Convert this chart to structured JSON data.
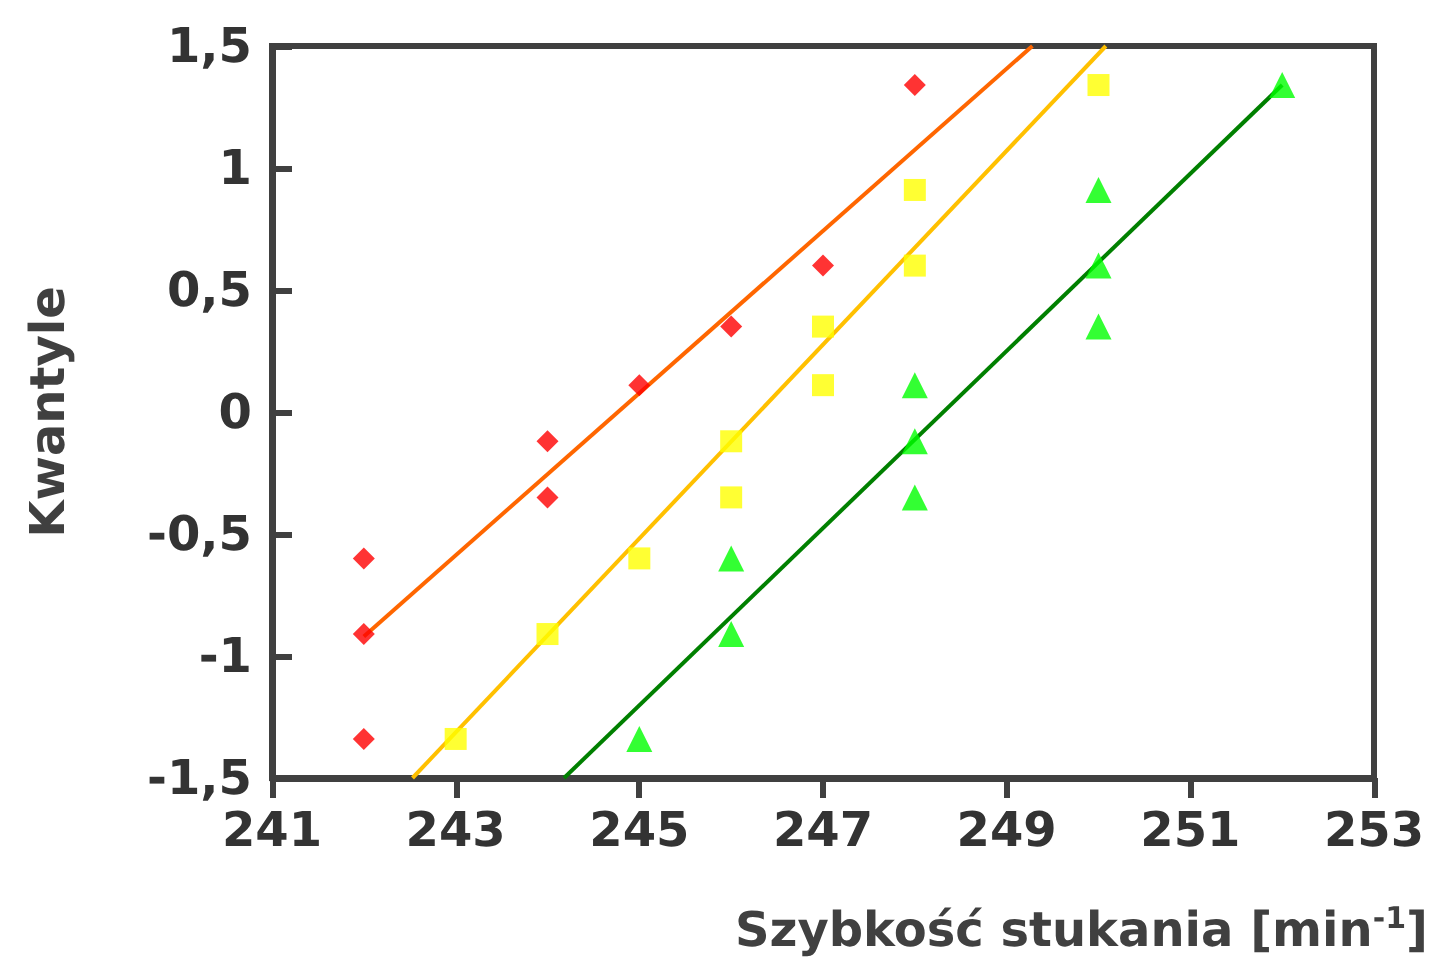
{
  "chart_data": {
    "type": "scatter",
    "xlabel": "Szybkość stukania [min$^{-1}$]",
    "ylabel": "Kwantyle",
    "xlim": [
      241,
      253
    ],
    "xticks": [
      241,
      243,
      245,
      247,
      249,
      251,
      253
    ],
    "ylim": [
      -1.5,
      1.5
    ],
    "yticks": [
      {
        "value": -1.5,
        "label": "-1,5"
      },
      {
        "value": -1,
        "label": "-1"
      },
      {
        "value": -0.5,
        "label": "-0,5"
      },
      {
        "value": 0,
        "label": "0"
      },
      {
        "value": 0.5,
        "label": "0,5"
      },
      {
        "value": 1,
        "label": "1"
      },
      {
        "value": 1.5,
        "label": "1,5"
      }
    ],
    "grid": false,
    "series": [
      {
        "marker": "diamond",
        "color": "#ff0000",
        "x": [
          242,
          242,
          242,
          244,
          244,
          245,
          246,
          247,
          248
        ],
        "values": [
          -0.6,
          -0.91,
          -1.34,
          -0.12,
          -0.35,
          0.11,
          0.35,
          0.6,
          1.34
        ]
      },
      {
        "marker": "square",
        "color": "#ffff00",
        "x": [
          243,
          244,
          245,
          246,
          246,
          247,
          247,
          248,
          248,
          250
        ],
        "values": [
          -1.34,
          -0.91,
          -0.6,
          -0.12,
          -0.35,
          0.35,
          0.11,
          0.6,
          0.91,
          1.34
        ]
      },
      {
        "marker": "triangle",
        "color": "#00ff00",
        "x": [
          245,
          246,
          246,
          248,
          248,
          248,
          250,
          250,
          250,
          252
        ],
        "values": [
          -1.34,
          -0.6,
          -0.91,
          0.11,
          -0.12,
          -0.35,
          0.91,
          0.6,
          0.35,
          1.34
        ]
      },
      {
        "type": "line",
        "marker": "none",
        "color": "#ff6600",
        "x": [
          242,
          249.28
        ],
        "values": [
          -0.92,
          1.5
        ]
      },
      {
        "type": "line",
        "marker": "none",
        "color": "#ffc000",
        "x": [
          242.53,
          250.08
        ],
        "values": [
          -1.5,
          1.5
        ]
      },
      {
        "type": "line",
        "marker": "none",
        "color": "#008000",
        "x": [
          244.18,
          252
        ],
        "values": [
          -1.5,
          1.34
        ]
      }
    ]
  }
}
